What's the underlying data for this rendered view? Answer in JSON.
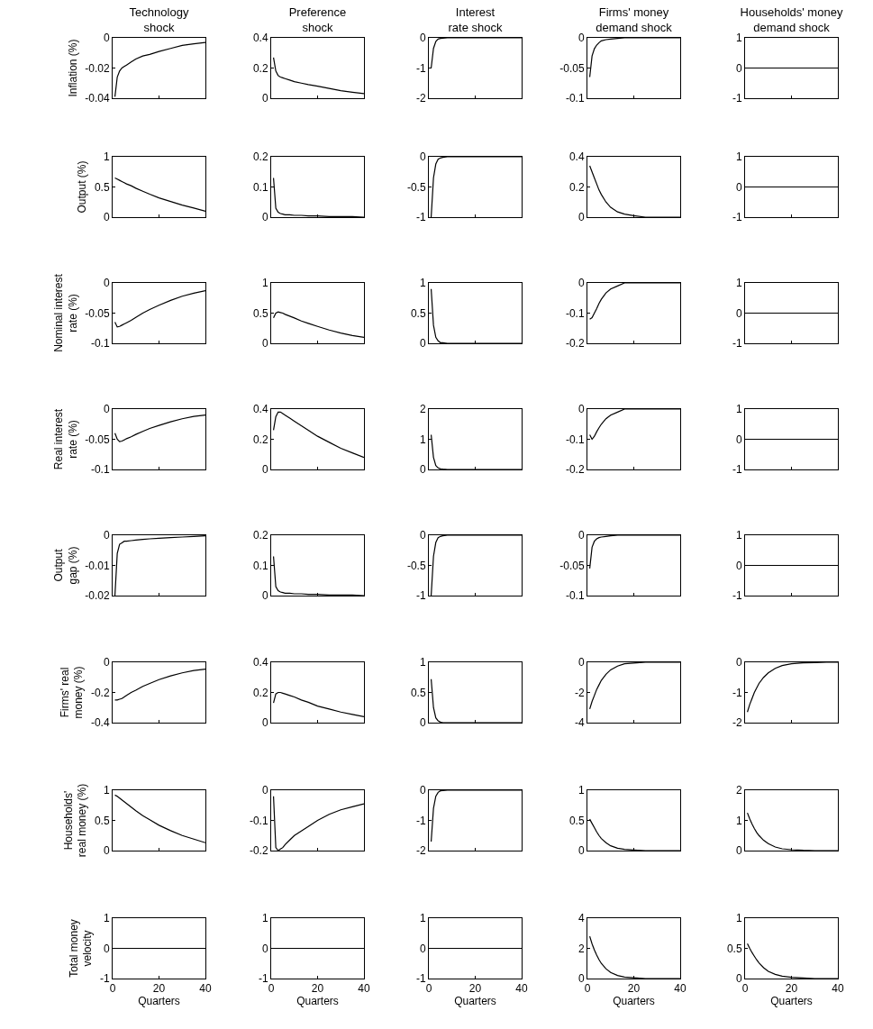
{
  "chart_data": [
    {
      "type": "line",
      "title": "Technology shock",
      "ylabel": "Inflation (%)",
      "color": "#000000",
      "x": [
        1,
        2,
        3,
        4,
        5,
        6,
        8,
        10,
        13,
        16,
        20,
        25,
        30,
        35,
        40
      ],
      "values": [
        -0.039,
        -0.026,
        -0.022,
        -0.02,
        -0.019,
        -0.018,
        -0.016,
        -0.014,
        -0.012,
        -0.011,
        -0.009,
        -0.007,
        -0.005,
        -0.004,
        -0.003
      ],
      "xlim": [
        0,
        40
      ],
      "xticks": [
        0,
        20,
        40
      ],
      "ylim": [
        -0.04,
        0
      ],
      "yticks": [
        -0.04,
        -0.02,
        0
      ],
      "tick_labels": "y"
    },
    {
      "type": "line",
      "title": "Preference shock",
      "color": "#000000",
      "x": [
        1,
        2,
        3,
        4,
        5,
        6,
        8,
        10,
        13,
        16,
        20,
        25,
        30,
        35,
        40
      ],
      "values": [
        0.27,
        0.18,
        0.15,
        0.14,
        0.135,
        0.13,
        0.12,
        0.11,
        0.1,
        0.09,
        0.08,
        0.065,
        0.05,
        0.04,
        0.03
      ],
      "xlim": [
        0,
        40
      ],
      "xticks": [
        0,
        20,
        40
      ],
      "ylim": [
        0,
        0.4
      ],
      "yticks": [
        0,
        0.2,
        0.4
      ],
      "tick_labels": "y"
    },
    {
      "type": "line",
      "title": "Interest rate shock",
      "color": "#000000",
      "x": [
        1,
        2,
        3,
        4,
        5,
        6,
        8,
        10,
        13,
        16,
        20,
        25,
        30,
        35,
        40
      ],
      "values": [
        -1.0,
        -0.35,
        -0.12,
        -0.04,
        -0.02,
        -0.01,
        0,
        0,
        0,
        0,
        0,
        0,
        0,
        0,
        0
      ],
      "xlim": [
        0,
        40
      ],
      "xticks": [
        0,
        20,
        40
      ],
      "ylim": [
        -2,
        0
      ],
      "yticks": [
        -2,
        -1,
        0
      ],
      "tick_labels": "y"
    },
    {
      "type": "line",
      "title": "Firms' money demand shock",
      "color": "#000000",
      "x": [
        1,
        2,
        3,
        4,
        5,
        6,
        8,
        10,
        13,
        16,
        20,
        25,
        30,
        35,
        40
      ],
      "values": [
        -0.065,
        -0.03,
        -0.018,
        -0.012,
        -0.008,
        -0.005,
        -0.003,
        -0.002,
        -0.001,
        0,
        0,
        0,
        0,
        0,
        0
      ],
      "xlim": [
        0,
        40
      ],
      "xticks": [
        0,
        20,
        40
      ],
      "ylim": [
        -0.1,
        0
      ],
      "yticks": [
        -0.1,
        -0.05,
        0
      ],
      "tick_labels": "y"
    },
    {
      "type": "line",
      "title": "Households' money demand shock",
      "color": "#000000",
      "x": [
        1,
        2,
        3,
        4,
        5,
        6,
        8,
        10,
        13,
        16,
        20,
        25,
        30,
        35,
        40
      ],
      "values": [
        0,
        0,
        0,
        0,
        0,
        0,
        0,
        0,
        0,
        0,
        0,
        0,
        0,
        0,
        0
      ],
      "xlim": [
        0,
        40
      ],
      "xticks": [
        0,
        20,
        40
      ],
      "ylim": [
        -1,
        1
      ],
      "yticks": [
        -1,
        0,
        1
      ],
      "tick_labels": "y"
    },
    {
      "type": "line",
      "ylabel": "Output (%)",
      "color": "#000000",
      "x": [
        1,
        2,
        3,
        4,
        5,
        6,
        8,
        10,
        13,
        16,
        20,
        25,
        30,
        35,
        40
      ],
      "values": [
        0.65,
        0.63,
        0.61,
        0.59,
        0.57,
        0.55,
        0.52,
        0.48,
        0.43,
        0.38,
        0.32,
        0.26,
        0.2,
        0.15,
        0.1
      ],
      "xlim": [
        0,
        40
      ],
      "xticks": [
        0,
        20,
        40
      ],
      "ylim": [
        0,
        1
      ],
      "yticks": [
        0,
        0.5,
        1
      ],
      "tick_labels": "y"
    },
    {
      "type": "line",
      "color": "#000000",
      "x": [
        1,
        2,
        3,
        4,
        5,
        6,
        8,
        10,
        13,
        16,
        20,
        25,
        30,
        35,
        40
      ],
      "values": [
        0.13,
        0.03,
        0.016,
        0.012,
        0.01,
        0.008,
        0.008,
        0.006,
        0.006,
        0.004,
        0.004,
        0.002,
        0.002,
        0.002,
        0
      ],
      "xlim": [
        0,
        40
      ],
      "xticks": [
        0,
        20,
        40
      ],
      "ylim": [
        0,
        0.2
      ],
      "yticks": [
        0,
        0.1,
        0.2
      ],
      "tick_labels": "y"
    },
    {
      "type": "line",
      "color": "#000000",
      "x": [
        1,
        2,
        3,
        4,
        5,
        6,
        8,
        10,
        13,
        16,
        20,
        25,
        30,
        35,
        40
      ],
      "values": [
        -1.0,
        -0.35,
        -0.12,
        -0.04,
        -0.02,
        -0.01,
        0,
        0,
        0,
        0,
        0,
        0,
        0,
        0,
        0
      ],
      "xlim": [
        0,
        40
      ],
      "xticks": [
        0,
        20,
        40
      ],
      "ylim": [
        -1,
        0
      ],
      "yticks": [
        -1,
        -0.5,
        0
      ],
      "tick_labels": "y"
    },
    {
      "type": "line",
      "color": "#000000",
      "x": [
        1,
        2,
        3,
        4,
        5,
        6,
        8,
        10,
        13,
        16,
        20,
        25,
        30,
        35,
        40
      ],
      "values": [
        0.34,
        0.3,
        0.26,
        0.22,
        0.18,
        0.15,
        0.1,
        0.065,
        0.035,
        0.02,
        0.01,
        0,
        0,
        0,
        0
      ],
      "xlim": [
        0,
        40
      ],
      "xticks": [
        0,
        20,
        40
      ],
      "ylim": [
        0,
        0.4
      ],
      "yticks": [
        0,
        0.2,
        0.4
      ],
      "tick_labels": "y"
    },
    {
      "type": "line",
      "color": "#000000",
      "x": [
        1,
        2,
        3,
        4,
        5,
        6,
        8,
        10,
        13,
        16,
        20,
        25,
        30,
        35,
        40
      ],
      "values": [
        0,
        0,
        0,
        0,
        0,
        0,
        0,
        0,
        0,
        0,
        0,
        0,
        0,
        0,
        0
      ],
      "xlim": [
        0,
        40
      ],
      "xticks": [
        0,
        20,
        40
      ],
      "ylim": [
        -1,
        1
      ],
      "yticks": [
        -1,
        0,
        1
      ],
      "tick_labels": "y"
    },
    {
      "type": "line",
      "ylabel": "Nominal interest rate (%)",
      "color": "#000000",
      "x": [
        1,
        2,
        3,
        4,
        5,
        6,
        8,
        10,
        13,
        16,
        20,
        25,
        30,
        35,
        40
      ],
      "values": [
        -0.065,
        -0.073,
        -0.072,
        -0.07,
        -0.068,
        -0.066,
        -0.062,
        -0.057,
        -0.05,
        -0.044,
        -0.037,
        -0.029,
        -0.022,
        -0.017,
        -0.013
      ],
      "xlim": [
        0,
        40
      ],
      "xticks": [
        0,
        20,
        40
      ],
      "ylim": [
        -0.1,
        0
      ],
      "yticks": [
        -0.1,
        -0.05,
        0
      ],
      "tick_labels": "y"
    },
    {
      "type": "line",
      "color": "#000000",
      "x": [
        1,
        2,
        3,
        4,
        5,
        6,
        8,
        10,
        13,
        16,
        20,
        25,
        30,
        35,
        40
      ],
      "values": [
        0.42,
        0.5,
        0.52,
        0.51,
        0.5,
        0.48,
        0.45,
        0.42,
        0.37,
        0.33,
        0.28,
        0.22,
        0.17,
        0.13,
        0.1
      ],
      "xlim": [
        0,
        40
      ],
      "xticks": [
        0,
        20,
        40
      ],
      "ylim": [
        0,
        1
      ],
      "yticks": [
        0,
        0.5,
        1
      ],
      "tick_labels": "y"
    },
    {
      "type": "line",
      "color": "#000000",
      "x": [
        1,
        2,
        3,
        4,
        5,
        6,
        8,
        10,
        13,
        16,
        20,
        25,
        30,
        35,
        40
      ],
      "values": [
        0.9,
        0.3,
        0.1,
        0.04,
        0.01,
        0.01,
        0,
        0,
        0,
        0,
        0,
        0,
        0,
        0,
        0
      ],
      "xlim": [
        0,
        40
      ],
      "xticks": [
        0,
        20,
        40
      ],
      "ylim": [
        0,
        1
      ],
      "yticks": [
        0,
        0.5,
        1
      ],
      "tick_labels": "y"
    },
    {
      "type": "line",
      "color": "#000000",
      "x": [
        1,
        2,
        3,
        4,
        5,
        6,
        8,
        10,
        13,
        16,
        20,
        25,
        30,
        35,
        40
      ],
      "values": [
        -0.12,
        -0.115,
        -0.1,
        -0.085,
        -0.068,
        -0.054,
        -0.033,
        -0.02,
        -0.01,
        0,
        0,
        0,
        0,
        0,
        0
      ],
      "xlim": [
        0,
        40
      ],
      "xticks": [
        0,
        20,
        40
      ],
      "ylim": [
        -0.2,
        0
      ],
      "yticks": [
        -0.2,
        -0.1,
        0
      ],
      "tick_labels": "y"
    },
    {
      "type": "line",
      "color": "#000000",
      "x": [
        1,
        2,
        3,
        4,
        5,
        6,
        8,
        10,
        13,
        16,
        20,
        25,
        30,
        35,
        40
      ],
      "values": [
        0,
        0,
        0,
        0,
        0,
        0,
        0,
        0,
        0,
        0,
        0,
        0,
        0,
        0,
        0
      ],
      "xlim": [
        0,
        40
      ],
      "xticks": [
        0,
        20,
        40
      ],
      "ylim": [
        -1,
        1
      ],
      "yticks": [
        -1,
        0,
        1
      ],
      "tick_labels": "y"
    },
    {
      "type": "line",
      "ylabel": "Real interest rate (%)",
      "color": "#000000",
      "x": [
        1,
        2,
        3,
        4,
        5,
        6,
        8,
        10,
        13,
        16,
        20,
        25,
        30,
        35,
        40
      ],
      "values": [
        -0.04,
        -0.05,
        -0.054,
        -0.053,
        -0.051,
        -0.049,
        -0.046,
        -0.042,
        -0.037,
        -0.032,
        -0.027,
        -0.021,
        -0.016,
        -0.012,
        -0.01
      ],
      "xlim": [
        0,
        40
      ],
      "xticks": [
        0,
        20,
        40
      ],
      "ylim": [
        -0.1,
        0
      ],
      "yticks": [
        -0.1,
        -0.05,
        0
      ],
      "tick_labels": "y"
    },
    {
      "type": "line",
      "color": "#000000",
      "x": [
        1,
        2,
        3,
        4,
        5,
        6,
        8,
        10,
        13,
        16,
        20,
        25,
        30,
        35,
        40
      ],
      "values": [
        0.26,
        0.35,
        0.38,
        0.38,
        0.37,
        0.36,
        0.34,
        0.32,
        0.29,
        0.26,
        0.22,
        0.18,
        0.14,
        0.11,
        0.08
      ],
      "xlim": [
        0,
        40
      ],
      "xticks": [
        0,
        20,
        40
      ],
      "ylim": [
        0,
        0.4
      ],
      "yticks": [
        0,
        0.2,
        0.4
      ],
      "tick_labels": "y"
    },
    {
      "type": "line",
      "color": "#000000",
      "x": [
        1,
        2,
        3,
        4,
        5,
        6,
        8,
        10,
        13,
        16,
        20,
        25,
        30,
        35,
        40
      ],
      "values": [
        1.15,
        0.4,
        0.13,
        0.05,
        0.02,
        0.01,
        0,
        0,
        0,
        0,
        0,
        0,
        0,
        0,
        0
      ],
      "xlim": [
        0,
        40
      ],
      "xticks": [
        0,
        20,
        40
      ],
      "ylim": [
        0,
        2
      ],
      "yticks": [
        0,
        1,
        2
      ],
      "tick_labels": "y"
    },
    {
      "type": "line",
      "color": "#000000",
      "x": [
        1,
        2,
        3,
        4,
        5,
        6,
        8,
        10,
        13,
        16,
        20,
        25,
        30,
        35,
        40
      ],
      "values": [
        -0.085,
        -0.1,
        -0.09,
        -0.075,
        -0.062,
        -0.05,
        -0.032,
        -0.02,
        -0.01,
        0,
        0,
        0,
        0,
        0,
        0
      ],
      "xlim": [
        0,
        40
      ],
      "xticks": [
        0,
        20,
        40
      ],
      "ylim": [
        -0.2,
        0
      ],
      "yticks": [
        -0.2,
        -0.1,
        0
      ],
      "tick_labels": "y"
    },
    {
      "type": "line",
      "color": "#000000",
      "x": [
        1,
        2,
        3,
        4,
        5,
        6,
        8,
        10,
        13,
        16,
        20,
        25,
        30,
        35,
        40
      ],
      "values": [
        0,
        0,
        0,
        0,
        0,
        0,
        0,
        0,
        0,
        0,
        0,
        0,
        0,
        0,
        0
      ],
      "xlim": [
        0,
        40
      ],
      "xticks": [
        0,
        20,
        40
      ],
      "ylim": [
        -1,
        1
      ],
      "yticks": [
        -1,
        0,
        1
      ],
      "tick_labels": "y"
    },
    {
      "type": "line",
      "ylabel": "Output gap (%)",
      "color": "#000000",
      "x": [
        1,
        2,
        3,
        4,
        5,
        6,
        8,
        10,
        13,
        16,
        20,
        25,
        30,
        35,
        40
      ],
      "values": [
        -0.02,
        -0.006,
        -0.003,
        -0.0025,
        -0.002,
        -0.002,
        -0.0018,
        -0.0016,
        -0.0014,
        -0.0012,
        -0.001,
        -0.0008,
        -0.0006,
        -0.0004,
        -0.0002
      ],
      "xlim": [
        0,
        40
      ],
      "xticks": [
        0,
        20,
        40
      ],
      "ylim": [
        -0.02,
        0
      ],
      "yticks": [
        -0.02,
        -0.01,
        0
      ],
      "tick_labels": "y"
    },
    {
      "type": "line",
      "color": "#000000",
      "x": [
        1,
        2,
        3,
        4,
        5,
        6,
        8,
        10,
        13,
        16,
        20,
        25,
        30,
        35,
        40
      ],
      "values": [
        0.13,
        0.03,
        0.016,
        0.012,
        0.01,
        0.008,
        0.008,
        0.006,
        0.006,
        0.004,
        0.004,
        0.002,
        0.002,
        0.002,
        0
      ],
      "xlim": [
        0,
        40
      ],
      "xticks": [
        0,
        20,
        40
      ],
      "ylim": [
        0,
        0.2
      ],
      "yticks": [
        0,
        0.1,
        0.2
      ],
      "tick_labels": "y"
    },
    {
      "type": "line",
      "color": "#000000",
      "x": [
        1,
        2,
        3,
        4,
        5,
        6,
        8,
        10,
        13,
        16,
        20,
        25,
        30,
        35,
        40
      ],
      "values": [
        -1.0,
        -0.35,
        -0.12,
        -0.04,
        -0.02,
        -0.01,
        0,
        0,
        0,
        0,
        0,
        0,
        0,
        0,
        0
      ],
      "xlim": [
        0,
        40
      ],
      "xticks": [
        0,
        20,
        40
      ],
      "ylim": [
        -1,
        0
      ],
      "yticks": [
        -1,
        -0.5,
        0
      ],
      "tick_labels": "y"
    },
    {
      "type": "line",
      "color": "#000000",
      "x": [
        1,
        2,
        3,
        4,
        5,
        6,
        8,
        10,
        13,
        16,
        20,
        25,
        30,
        35,
        40
      ],
      "values": [
        -0.055,
        -0.02,
        -0.01,
        -0.006,
        -0.004,
        -0.003,
        -0.002,
        -0.001,
        0,
        0,
        0,
        0,
        0,
        0,
        0
      ],
      "xlim": [
        0,
        40
      ],
      "xticks": [
        0,
        20,
        40
      ],
      "ylim": [
        -0.1,
        0
      ],
      "yticks": [
        -0.1,
        -0.05,
        0
      ],
      "tick_labels": "y"
    },
    {
      "type": "line",
      "color": "#000000",
      "x": [
        1,
        2,
        3,
        4,
        5,
        6,
        8,
        10,
        13,
        16,
        20,
        25,
        30,
        35,
        40
      ],
      "values": [
        0,
        0,
        0,
        0,
        0,
        0,
        0,
        0,
        0,
        0,
        0,
        0,
        0,
        0,
        0
      ],
      "xlim": [
        0,
        40
      ],
      "xticks": [
        0,
        20,
        40
      ],
      "ylim": [
        -1,
        1
      ],
      "yticks": [
        -1,
        0,
        1
      ],
      "tick_labels": "y"
    },
    {
      "type": "line",
      "ylabel": "Firms' real money (%)",
      "color": "#000000",
      "x": [
        1,
        2,
        3,
        4,
        5,
        6,
        8,
        10,
        13,
        16,
        20,
        25,
        30,
        35,
        40
      ],
      "values": [
        -0.25,
        -0.25,
        -0.245,
        -0.24,
        -0.23,
        -0.22,
        -0.2,
        -0.185,
        -0.16,
        -0.14,
        -0.115,
        -0.09,
        -0.07,
        -0.055,
        -0.045
      ],
      "xlim": [
        0,
        40
      ],
      "xticks": [
        0,
        20,
        40
      ],
      "ylim": [
        -0.4,
        0
      ],
      "yticks": [
        -0.4,
        -0.2,
        0
      ],
      "tick_labels": "y"
    },
    {
      "type": "line",
      "color": "#000000",
      "x": [
        1,
        2,
        3,
        4,
        5,
        6,
        8,
        10,
        13,
        16,
        20,
        25,
        30,
        35,
        40
      ],
      "values": [
        0.13,
        0.19,
        0.2,
        0.2,
        0.195,
        0.19,
        0.18,
        0.17,
        0.15,
        0.135,
        0.11,
        0.09,
        0.07,
        0.055,
        0.04
      ],
      "xlim": [
        0,
        40
      ],
      "xticks": [
        0,
        20,
        40
      ],
      "ylim": [
        0,
        0.4
      ],
      "yticks": [
        0,
        0.2,
        0.4
      ],
      "tick_labels": "y"
    },
    {
      "type": "line",
      "color": "#000000",
      "x": [
        1,
        2,
        3,
        4,
        5,
        6,
        8,
        10,
        13,
        16,
        20,
        25,
        30,
        35,
        40
      ],
      "values": [
        0.72,
        0.25,
        0.08,
        0.03,
        0.01,
        0,
        0,
        0,
        0,
        0,
        0,
        0,
        0,
        0,
        0
      ],
      "xlim": [
        0,
        40
      ],
      "xticks": [
        0,
        20,
        40
      ],
      "ylim": [
        0,
        1
      ],
      "yticks": [
        0,
        0.5,
        1
      ],
      "tick_labels": "y"
    },
    {
      "type": "line",
      "color": "#000000",
      "x": [
        1,
        2,
        3,
        4,
        5,
        6,
        8,
        10,
        13,
        16,
        20,
        25,
        30,
        35,
        40
      ],
      "values": [
        -3.1,
        -2.6,
        -2.2,
        -1.8,
        -1.5,
        -1.2,
        -0.8,
        -0.5,
        -0.25,
        -0.1,
        -0.05,
        0,
        0,
        0,
        0
      ],
      "xlim": [
        0,
        40
      ],
      "xticks": [
        0,
        20,
        40
      ],
      "ylim": [
        -4,
        0
      ],
      "yticks": [
        -4,
        -2,
        0
      ],
      "tick_labels": "y"
    },
    {
      "type": "line",
      "color": "#000000",
      "x": [
        1,
        2,
        3,
        4,
        5,
        6,
        8,
        10,
        13,
        16,
        20,
        25,
        30,
        35,
        40
      ],
      "values": [
        -1.65,
        -1.4,
        -1.2,
        -1.0,
        -0.85,
        -0.7,
        -0.5,
        -0.35,
        -0.2,
        -0.11,
        -0.05,
        -0.02,
        -0.01,
        0,
        0
      ],
      "xlim": [
        0,
        40
      ],
      "xticks": [
        0,
        20,
        40
      ],
      "ylim": [
        -2,
        0
      ],
      "yticks": [
        -2,
        -1,
        0
      ],
      "tick_labels": "y"
    },
    {
      "type": "line",
      "ylabel": "Households' real money (%)",
      "color": "#000000",
      "x": [
        1,
        2,
        3,
        4,
        5,
        6,
        8,
        10,
        13,
        16,
        20,
        25,
        30,
        35,
        40
      ],
      "values": [
        0.92,
        0.9,
        0.87,
        0.84,
        0.81,
        0.78,
        0.72,
        0.66,
        0.58,
        0.51,
        0.42,
        0.33,
        0.25,
        0.19,
        0.13
      ],
      "xlim": [
        0,
        40
      ],
      "xticks": [
        0,
        20,
        40
      ],
      "ylim": [
        0,
        1
      ],
      "yticks": [
        0,
        0.5,
        1
      ],
      "tick_labels": "y"
    },
    {
      "type": "line",
      "color": "#000000",
      "x": [
        1,
        2,
        3,
        4,
        5,
        6,
        8,
        10,
        13,
        16,
        20,
        25,
        30,
        35,
        40
      ],
      "values": [
        -0.02,
        -0.19,
        -0.2,
        -0.195,
        -0.19,
        -0.18,
        -0.165,
        -0.15,
        -0.135,
        -0.12,
        -0.1,
        -0.08,
        -0.065,
        -0.055,
        -0.045
      ],
      "xlim": [
        0,
        40
      ],
      "xticks": [
        0,
        20,
        40
      ],
      "ylim": [
        -0.2,
        0
      ],
      "yticks": [
        -0.2,
        -0.1,
        0
      ],
      "tick_labels": "y"
    },
    {
      "type": "line",
      "color": "#000000",
      "x": [
        1,
        2,
        3,
        4,
        5,
        6,
        8,
        10,
        13,
        16,
        20,
        25,
        30,
        35,
        40
      ],
      "values": [
        -1.7,
        -0.6,
        -0.2,
        -0.07,
        -0.02,
        -0.01,
        0,
        0,
        0,
        0,
        0,
        0,
        0,
        0,
        0
      ],
      "xlim": [
        0,
        40
      ],
      "xticks": [
        0,
        20,
        40
      ],
      "ylim": [
        -2,
        0
      ],
      "yticks": [
        -2,
        -1,
        0
      ],
      "tick_labels": "y"
    },
    {
      "type": "line",
      "color": "#000000",
      "x": [
        1,
        2,
        3,
        4,
        5,
        6,
        8,
        10,
        13,
        16,
        20,
        25,
        30,
        35,
        40
      ],
      "values": [
        0.52,
        0.45,
        0.38,
        0.31,
        0.25,
        0.2,
        0.13,
        0.08,
        0.04,
        0.02,
        0.01,
        0,
        0,
        0,
        0
      ],
      "xlim": [
        0,
        40
      ],
      "xticks": [
        0,
        20,
        40
      ],
      "ylim": [
        0,
        1
      ],
      "yticks": [
        0,
        0.5,
        1
      ],
      "tick_labels": "y"
    },
    {
      "type": "line",
      "color": "#000000",
      "x": [
        1,
        2,
        3,
        4,
        5,
        6,
        8,
        10,
        13,
        16,
        20,
        25,
        30,
        35,
        40
      ],
      "values": [
        1.25,
        1.05,
        0.88,
        0.73,
        0.6,
        0.5,
        0.34,
        0.23,
        0.12,
        0.06,
        0.03,
        0.01,
        0,
        0,
        0
      ],
      "xlim": [
        0,
        40
      ],
      "xticks": [
        0,
        20,
        40
      ],
      "ylim": [
        0,
        2
      ],
      "yticks": [
        0,
        1,
        2
      ],
      "tick_labels": "y"
    },
    {
      "type": "line",
      "ylabel": "Total money velocity",
      "xlabel": "Quarters",
      "color": "#000000",
      "x": [
        1,
        2,
        3,
        4,
        5,
        6,
        8,
        10,
        13,
        16,
        20,
        25,
        30,
        35,
        40
      ],
      "values": [
        0,
        0,
        0,
        0,
        0,
        0,
        0,
        0,
        0,
        0,
        0,
        0,
        0,
        0,
        0
      ],
      "xlim": [
        0,
        40
      ],
      "xticks": [
        0,
        20,
        40
      ],
      "ylim": [
        -1,
        1
      ],
      "yticks": [
        -1,
        0,
        1
      ]
    },
    {
      "type": "line",
      "xlabel": "Quarters",
      "color": "#000000",
      "x": [
        1,
        2,
        3,
        4,
        5,
        6,
        8,
        10,
        13,
        16,
        20,
        25,
        30,
        35,
        40
      ],
      "values": [
        0,
        0,
        0,
        0,
        0,
        0,
        0,
        0,
        0,
        0,
        0,
        0,
        0,
        0,
        0
      ],
      "xlim": [
        0,
        40
      ],
      "xticks": [
        0,
        20,
        40
      ],
      "ylim": [
        -1,
        1
      ],
      "yticks": [
        -1,
        0,
        1
      ]
    },
    {
      "type": "line",
      "xlabel": "Quarters",
      "color": "#000000",
      "x": [
        1,
        2,
        3,
        4,
        5,
        6,
        8,
        10,
        13,
        16,
        20,
        25,
        30,
        35,
        40
      ],
      "values": [
        0,
        0,
        0,
        0,
        0,
        0,
        0,
        0,
        0,
        0,
        0,
        0,
        0,
        0,
        0
      ],
      "xlim": [
        0,
        40
      ],
      "xticks": [
        0,
        20,
        40
      ],
      "ylim": [
        -1,
        1
      ],
      "yticks": [
        -1,
        0,
        1
      ]
    },
    {
      "type": "line",
      "xlabel": "Quarters",
      "color": "#000000",
      "x": [
        1,
        2,
        3,
        4,
        5,
        6,
        8,
        10,
        13,
        16,
        20,
        25,
        30,
        35,
        40
      ],
      "values": [
        2.8,
        2.3,
        1.9,
        1.55,
        1.25,
        1.0,
        0.65,
        0.4,
        0.2,
        0.1,
        0.05,
        0,
        0,
        0,
        0
      ],
      "xlim": [
        0,
        40
      ],
      "xticks": [
        0,
        20,
        40
      ],
      "ylim": [
        0,
        4
      ],
      "yticks": [
        0,
        2,
        4
      ]
    },
    {
      "type": "line",
      "xlabel": "Quarters",
      "color": "#000000",
      "x": [
        1,
        2,
        3,
        4,
        5,
        6,
        8,
        10,
        13,
        16,
        20,
        25,
        30,
        35,
        40
      ],
      "values": [
        0.58,
        0.5,
        0.43,
        0.37,
        0.31,
        0.26,
        0.18,
        0.12,
        0.07,
        0.04,
        0.02,
        0.01,
        0,
        0,
        0
      ],
      "xlim": [
        0,
        40
      ],
      "xticks": [
        0,
        20,
        40
      ],
      "ylim": [
        0,
        1
      ],
      "yticks": [
        0,
        0.5,
        1
      ]
    }
  ]
}
